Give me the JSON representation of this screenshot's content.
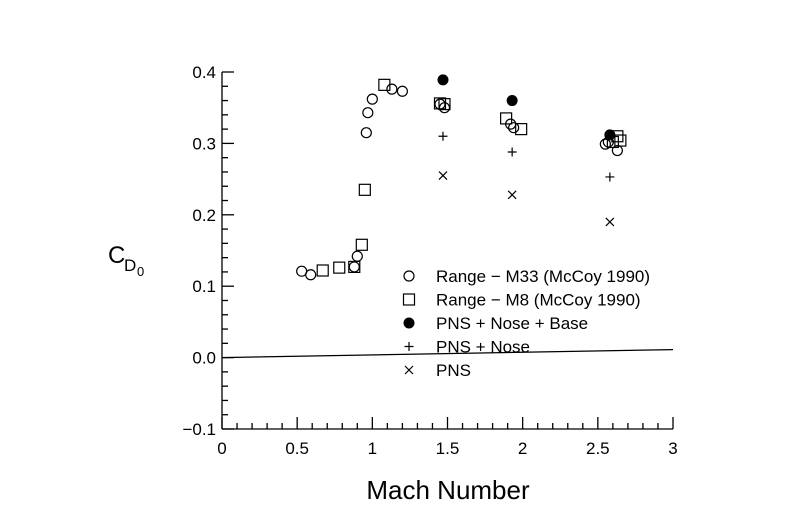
{
  "chart_data": {
    "type": "scatter",
    "title": "",
    "xlabel": "Mach Number",
    "ylabel_main": "C",
    "ylabel_sub1": "D",
    "ylabel_sub2": "0",
    "xlim": [
      0,
      3
    ],
    "ylim": [
      -0.1,
      0.4
    ],
    "x_ticks": [
      "0",
      "0.5",
      "1",
      "1.5",
      "2",
      "2.5",
      "3"
    ],
    "y_ticks": [
      "-0.1",
      "0.0",
      "0.1",
      "0.2",
      "0.3",
      "0.4"
    ],
    "grid": false,
    "legend_position": "lower-right",
    "series": [
      {
        "name": "Range − M33 (McCoy 1990)",
        "marker": "open-circle",
        "points": [
          [
            0.53,
            0.121
          ],
          [
            0.59,
            0.116
          ],
          [
            0.88,
            0.127
          ],
          [
            0.9,
            0.142
          ],
          [
            0.96,
            0.315
          ],
          [
            0.97,
            0.343
          ],
          [
            1.0,
            0.362
          ],
          [
            1.13,
            0.376
          ],
          [
            1.2,
            0.373
          ],
          [
            1.45,
            0.355
          ],
          [
            1.48,
            0.35
          ],
          [
            1.92,
            0.327
          ],
          [
            1.94,
            0.322
          ],
          [
            2.55,
            0.299
          ],
          [
            2.57,
            0.302
          ],
          [
            2.63,
            0.29
          ]
        ]
      },
      {
        "name": "Range − M8 (McCoy 1990)",
        "marker": "open-square",
        "points": [
          [
            0.67,
            0.122
          ],
          [
            0.78,
            0.126
          ],
          [
            0.88,
            0.127
          ],
          [
            0.93,
            0.158
          ],
          [
            0.95,
            0.235
          ],
          [
            1.08,
            0.382
          ],
          [
            1.45,
            0.356
          ],
          [
            1.48,
            0.355
          ],
          [
            1.89,
            0.335
          ],
          [
            1.99,
            0.32
          ],
          [
            2.6,
            0.302
          ],
          [
            2.63,
            0.31
          ],
          [
            2.65,
            0.304
          ]
        ]
      },
      {
        "name": "PNS + Nose + Base",
        "marker": "filled-circle",
        "points": [
          [
            1.47,
            0.389
          ],
          [
            1.93,
            0.36
          ],
          [
            2.58,
            0.312
          ]
        ]
      },
      {
        "name": "PNS + Nose",
        "marker": "plus",
        "points": [
          [
            1.47,
            0.31
          ],
          [
            1.93,
            0.288
          ],
          [
            2.58,
            0.253
          ]
        ]
      },
      {
        "name": "PNS",
        "marker": "x",
        "points": [
          [
            1.47,
            0.255
          ],
          [
            1.93,
            0.228
          ],
          [
            2.58,
            0.19
          ]
        ]
      }
    ]
  }
}
